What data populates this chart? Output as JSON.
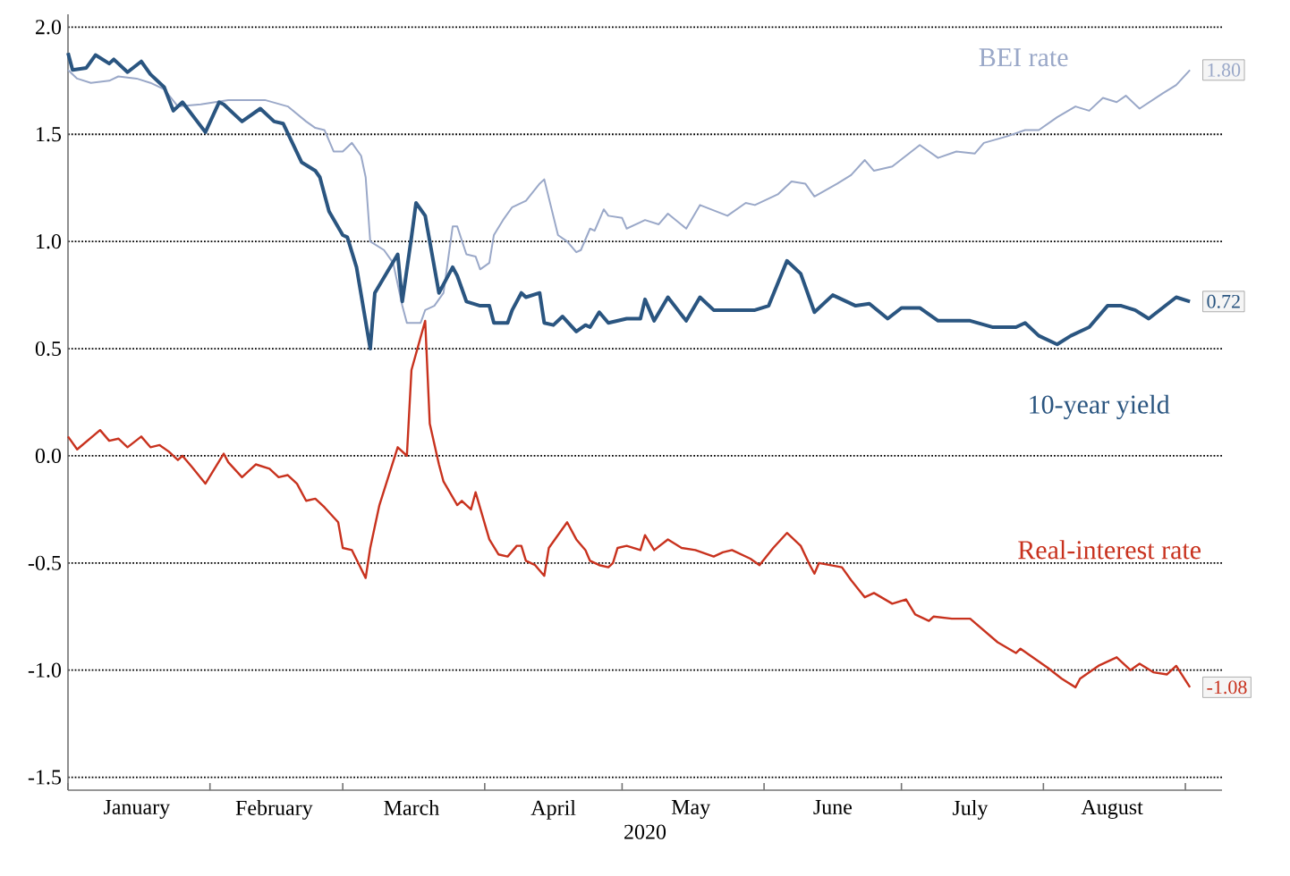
{
  "chart_data": {
    "type": "line",
    "xlabel": "2020",
    "xlim": [
      "2020-01-01",
      "2020-09-09"
    ],
    "xticks": [
      {
        "value": "2020-01-01",
        "label": null
      },
      {
        "value": "2020-01-16",
        "label": "January"
      },
      {
        "value": "2020-02-01",
        "label": null
      },
      {
        "value": "2020-02-15",
        "label": "February"
      },
      {
        "value": "2020-03-01",
        "label": null
      },
      {
        "value": "2020-03-16",
        "label": "March"
      },
      {
        "value": "2020-04-01",
        "label": null
      },
      {
        "value": "2020-04-16",
        "label": "April"
      },
      {
        "value": "2020-05-01",
        "label": null
      },
      {
        "value": "2020-05-16",
        "label": "May"
      },
      {
        "value": "2020-06-01",
        "label": null
      },
      {
        "value": "2020-06-16",
        "label": "June"
      },
      {
        "value": "2020-07-01",
        "label": null
      },
      {
        "value": "2020-07-16",
        "label": "July"
      },
      {
        "value": "2020-08-01",
        "label": null
      },
      {
        "value": "2020-08-16",
        "label": "August"
      },
      {
        "value": "2020-09-01",
        "label": null
      }
    ],
    "ylim": [
      -1.56,
      2.06
    ],
    "yticks": [
      -1.5,
      {
        "value": -1.0,
        "label": "-1.0"
      },
      -0.5,
      {
        "value": 0,
        "label": "0.0"
      },
      0.5,
      {
        "value": 1.0,
        "label": "1.0"
      },
      1.5,
      {
        "value": 2.0,
        "label": "2.0"
      }
    ],
    "grid": "y",
    "legend": false,
    "marker": "none",
    "line_style": "solid",
    "series": [
      {
        "name": "BEI rate",
        "color": "#9aa8c8",
        "x": [
          "2020-01-01",
          "2020-01-03",
          "2020-01-06",
          "2020-01-10",
          "2020-01-12",
          "2020-01-16",
          "2020-01-19",
          "2020-01-22",
          "2020-01-25",
          "2020-01-30",
          "2020-02-02",
          "2020-02-05",
          "2020-02-13",
          "2020-02-18",
          "2020-02-22",
          "2020-02-24",
          "2020-02-26",
          "2020-02-28",
          "2020-03-01",
          "2020-03-03",
          "2020-03-05",
          "2020-03-06",
          "2020-03-07",
          "2020-03-10",
          "2020-03-12",
          "2020-03-14",
          "2020-03-15",
          "2020-03-18",
          "2020-03-19",
          "2020-03-21",
          "2020-03-23",
          "2020-03-25",
          "2020-03-26",
          "2020-03-28",
          "2020-03-30",
          "2020-03-31",
          "2020-04-02",
          "2020-04-03",
          "2020-04-05",
          "2020-04-07",
          "2020-04-10",
          "2020-04-13",
          "2020-04-14",
          "2020-04-17",
          "2020-04-19",
          "2020-04-21",
          "2020-04-22",
          "2020-04-24",
          "2020-04-25",
          "2020-04-27",
          "2020-04-28",
          "2020-05-01",
          "2020-05-02",
          "2020-05-05",
          "2020-05-06",
          "2020-05-09",
          "2020-05-11",
          "2020-05-15",
          "2020-05-18",
          "2020-05-24",
          "2020-05-28",
          "2020-05-30",
          "2020-06-04",
          "2020-06-07",
          "2020-06-10",
          "2020-06-12",
          "2020-06-17",
          "2020-06-20",
          "2020-06-23",
          "2020-06-25",
          "2020-06-29",
          "2020-07-02",
          "2020-07-05",
          "2020-07-09",
          "2020-07-13",
          "2020-07-17",
          "2020-07-19",
          "2020-07-24",
          "2020-07-28",
          "2020-07-31",
          "2020-08-04",
          "2020-08-08",
          "2020-08-11",
          "2020-08-14",
          "2020-08-17",
          "2020-08-19",
          "2020-08-22",
          "2020-08-27",
          "2020-08-30",
          "2020-09-02"
        ],
        "values": [
          1.8,
          1.76,
          1.74,
          1.75,
          1.77,
          1.76,
          1.74,
          1.71,
          1.63,
          1.64,
          1.65,
          1.66,
          1.66,
          1.63,
          1.56,
          1.53,
          1.52,
          1.42,
          1.42,
          1.46,
          1.4,
          1.3,
          1.0,
          0.96,
          0.9,
          0.7,
          0.62,
          0.62,
          0.68,
          0.7,
          0.76,
          1.07,
          1.07,
          0.94,
          0.93,
          0.87,
          0.9,
          1.03,
          1.1,
          1.16,
          1.19,
          1.27,
          1.29,
          1.03,
          1.0,
          0.95,
          0.96,
          1.06,
          1.05,
          1.15,
          1.12,
          1.11,
          1.06,
          1.09,
          1.1,
          1.08,
          1.13,
          1.06,
          1.17,
          1.12,
          1.18,
          1.17,
          1.22,
          1.28,
          1.27,
          1.21,
          1.27,
          1.31,
          1.38,
          1.33,
          1.35,
          1.4,
          1.45,
          1.39,
          1.42,
          1.41,
          1.46,
          1.49,
          1.52,
          1.52,
          1.58,
          1.63,
          1.61,
          1.67,
          1.65,
          1.68,
          1.62,
          1.69,
          1.73,
          1.8
        ],
        "value_labels": [
          null,
          null,
          null,
          null,
          null,
          null,
          null,
          null,
          null,
          null,
          null,
          null,
          null,
          null,
          null,
          null,
          null,
          null,
          null,
          null,
          null,
          null,
          null,
          null,
          null,
          null,
          null,
          null,
          null,
          null,
          null,
          null,
          null,
          null,
          null,
          null,
          null,
          null,
          null,
          null,
          null,
          null,
          null,
          null,
          null,
          null,
          null,
          null,
          null,
          null,
          null,
          null,
          null,
          null,
          null,
          null,
          null,
          null,
          null,
          null,
          null,
          null,
          null,
          null,
          null,
          null,
          null,
          null,
          null,
          null,
          null,
          null,
          null,
          null,
          null,
          null,
          null,
          null,
          null,
          null,
          null,
          null,
          null,
          null,
          null,
          null,
          null,
          null,
          null,
          "1.80"
        ]
      },
      {
        "name": "10-year yield",
        "color": "#2a5580",
        "x": [
          "2020-01-01",
          "2020-01-02",
          "2020-01-05",
          "2020-01-07",
          "2020-01-10",
          "2020-01-11",
          "2020-01-14",
          "2020-01-17",
          "2020-01-19",
          "2020-01-22",
          "2020-01-24",
          "2020-01-26",
          "2020-01-31",
          "2020-02-03",
          "2020-02-04",
          "2020-02-08",
          "2020-02-12",
          "2020-02-15",
          "2020-02-17",
          "2020-02-21",
          "2020-02-24",
          "2020-02-25",
          "2020-02-27",
          "2020-03-01",
          "2020-03-02",
          "2020-03-04",
          "2020-03-07",
          "2020-03-08",
          "2020-03-13",
          "2020-03-14",
          "2020-03-16",
          "2020-03-17",
          "2020-03-19",
          "2020-03-22",
          "2020-03-25",
          "2020-03-26",
          "2020-03-28",
          "2020-03-31",
          "2020-04-02",
          "2020-04-03",
          "2020-04-06",
          "2020-04-07",
          "2020-04-09",
          "2020-04-10",
          "2020-04-13",
          "2020-04-14",
          "2020-04-16",
          "2020-04-18",
          "2020-04-21",
          "2020-04-23",
          "2020-04-24",
          "2020-04-26",
          "2020-04-28",
          "2020-05-02",
          "2020-05-05",
          "2020-05-06",
          "2020-05-08",
          "2020-05-11",
          "2020-05-15",
          "2020-05-18",
          "2020-05-21",
          "2020-05-23",
          "2020-05-30",
          "2020-06-02",
          "2020-06-06",
          "2020-06-09",
          "2020-06-12",
          "2020-06-16",
          "2020-06-21",
          "2020-06-24",
          "2020-06-28",
          "2020-07-01",
          "2020-07-05",
          "2020-07-09",
          "2020-07-16",
          "2020-07-21",
          "2020-07-26",
          "2020-07-28",
          "2020-07-31",
          "2020-08-04",
          "2020-08-07",
          "2020-08-11",
          "2020-08-15",
          "2020-08-18",
          "2020-08-21",
          "2020-08-24",
          "2020-08-27",
          "2020-08-30",
          "2020-09-02"
        ],
        "values": [
          1.88,
          1.8,
          1.81,
          1.87,
          1.83,
          1.85,
          1.79,
          1.84,
          1.78,
          1.72,
          1.61,
          1.65,
          1.51,
          1.65,
          1.64,
          1.56,
          1.62,
          1.56,
          1.55,
          1.37,
          1.33,
          1.3,
          1.14,
          1.03,
          1.02,
          0.88,
          0.5,
          0.76,
          0.94,
          0.72,
          1.02,
          1.18,
          1.12,
          0.76,
          0.88,
          0.84,
          0.72,
          0.7,
          0.7,
          0.62,
          0.62,
          0.68,
          0.76,
          0.74,
          0.76,
          0.62,
          0.61,
          0.65,
          0.58,
          0.61,
          0.6,
          0.67,
          0.62,
          0.64,
          0.64,
          0.73,
          0.63,
          0.74,
          0.63,
          0.74,
          0.68,
          0.68,
          0.68,
          0.7,
          0.91,
          0.85,
          0.67,
          0.75,
          0.7,
          0.71,
          0.64,
          0.69,
          0.69,
          0.63,
          0.63,
          0.6,
          0.6,
          0.62,
          0.56,
          0.52,
          0.56,
          0.6,
          0.7,
          0.7,
          0.68,
          0.64,
          0.69,
          0.74,
          0.72
        ],
        "value_labels": [
          null,
          null,
          null,
          null,
          null,
          null,
          null,
          null,
          null,
          null,
          null,
          null,
          null,
          null,
          null,
          null,
          null,
          null,
          null,
          null,
          null,
          null,
          null,
          null,
          null,
          null,
          null,
          null,
          null,
          null,
          null,
          null,
          null,
          null,
          null,
          null,
          null,
          null,
          null,
          null,
          null,
          null,
          null,
          null,
          null,
          null,
          null,
          null,
          null,
          null,
          null,
          null,
          null,
          null,
          null,
          null,
          null,
          null,
          null,
          null,
          null,
          null,
          null,
          null,
          null,
          null,
          null,
          null,
          null,
          null,
          null,
          null,
          null,
          null,
          null,
          null,
          null,
          null,
          null,
          null,
          null,
          null,
          null,
          null,
          null,
          null,
          null,
          null,
          "0.72"
        ]
      },
      {
        "name": "Real-interest rate",
        "color": "#c8321e",
        "x": [
          "2020-01-01",
          "2020-01-03",
          "2020-01-08",
          "2020-01-10",
          "2020-01-12",
          "2020-01-14",
          "2020-01-17",
          "2020-01-19",
          "2020-01-21",
          "2020-01-23",
          "2020-01-25",
          "2020-01-26",
          "2020-01-28",
          "2020-01-31",
          "2020-02-04",
          "2020-02-05",
          "2020-02-08",
          "2020-02-11",
          "2020-02-14",
          "2020-02-16",
          "2020-02-18",
          "2020-02-20",
          "2020-02-22",
          "2020-02-24",
          "2020-02-26",
          "2020-02-29",
          "2020-03-01",
          "2020-03-03",
          "2020-03-06",
          "2020-03-07",
          "2020-03-09",
          "2020-03-13",
          "2020-03-15",
          "2020-03-16",
          "2020-03-19",
          "2020-03-20",
          "2020-03-22",
          "2020-03-23",
          "2020-03-26",
          "2020-03-27",
          "2020-03-29",
          "2020-03-30",
          "2020-04-02",
          "2020-04-04",
          "2020-04-06",
          "2020-04-08",
          "2020-04-09",
          "2020-04-10",
          "2020-04-12",
          "2020-04-14",
          "2020-04-15",
          "2020-04-19",
          "2020-04-21",
          "2020-04-23",
          "2020-04-24",
          "2020-04-26",
          "2020-04-28",
          "2020-04-29",
          "2020-04-30",
          "2020-05-02",
          "2020-05-05",
          "2020-05-06",
          "2020-05-08",
          "2020-05-11",
          "2020-05-14",
          "2020-05-17",
          "2020-05-21",
          "2020-05-23",
          "2020-05-25",
          "2020-05-29",
          "2020-05-31",
          "2020-06-03",
          "2020-06-06",
          "2020-06-09",
          "2020-06-11",
          "2020-06-12",
          "2020-06-13",
          "2020-06-18",
          "2020-06-20",
          "2020-06-23",
          "2020-06-25",
          "2020-06-29",
          "2020-07-02",
          "2020-07-04",
          "2020-07-07",
          "2020-07-08",
          "2020-07-12",
          "2020-07-16",
          "2020-07-22",
          "2020-07-26",
          "2020-07-27",
          "2020-08-02",
          "2020-08-05",
          "2020-08-08",
          "2020-08-09",
          "2020-08-13",
          "2020-08-17",
          "2020-08-20",
          "2020-08-22",
          "2020-08-25",
          "2020-08-28",
          "2020-08-30",
          "2020-09-02"
        ],
        "values": [
          0.09,
          0.03,
          0.12,
          0.07,
          0.08,
          0.04,
          0.09,
          0.04,
          0.05,
          0.02,
          -0.02,
          0.0,
          -0.05,
          -0.13,
          0.01,
          -0.03,
          -0.1,
          -0.04,
          -0.06,
          -0.1,
          -0.09,
          -0.13,
          -0.21,
          -0.2,
          -0.24,
          -0.31,
          -0.43,
          -0.44,
          -0.57,
          -0.43,
          -0.23,
          0.04,
          0.0,
          0.4,
          0.63,
          0.15,
          -0.04,
          -0.12,
          -0.23,
          -0.21,
          -0.25,
          -0.17,
          -0.39,
          -0.46,
          -0.47,
          -0.42,
          -0.42,
          -0.49,
          -0.51,
          -0.56,
          -0.43,
          -0.31,
          -0.39,
          -0.44,
          -0.49,
          -0.51,
          -0.52,
          -0.5,
          -0.43,
          -0.42,
          -0.44,
          -0.37,
          -0.44,
          -0.39,
          -0.43,
          -0.44,
          -0.47,
          -0.45,
          -0.44,
          -0.48,
          -0.51,
          -0.43,
          -0.36,
          -0.42,
          -0.51,
          -0.55,
          -0.5,
          -0.52,
          -0.58,
          -0.66,
          -0.64,
          -0.69,
          -0.67,
          -0.74,
          -0.77,
          -0.75,
          -0.76,
          -0.76,
          -0.87,
          -0.92,
          -0.9,
          -0.99,
          -1.04,
          -1.08,
          -1.04,
          -0.98,
          -0.94,
          -1.0,
          -0.97,
          -1.01,
          -1.02,
          -0.98,
          -1.08
        ],
        "value_labels": [
          null,
          null,
          null,
          null,
          null,
          null,
          null,
          null,
          null,
          null,
          null,
          null,
          null,
          null,
          null,
          null,
          null,
          null,
          null,
          null,
          null,
          null,
          null,
          null,
          null,
          null,
          null,
          null,
          null,
          null,
          null,
          null,
          null,
          null,
          null,
          null,
          null,
          null,
          null,
          null,
          null,
          null,
          null,
          null,
          null,
          null,
          null,
          null,
          null,
          null,
          null,
          null,
          null,
          null,
          null,
          null,
          null,
          null,
          null,
          null,
          null,
          null,
          null,
          null,
          null,
          null,
          null,
          null,
          null,
          null,
          null,
          null,
          null,
          null,
          null,
          null,
          null,
          null,
          null,
          null,
          null,
          null,
          null,
          null,
          null,
          null,
          null,
          null,
          null,
          null,
          null,
          null,
          null,
          null,
          null,
          null,
          null,
          null,
          null,
          null,
          null,
          null,
          "-1.08"
        ]
      }
    ]
  }
}
